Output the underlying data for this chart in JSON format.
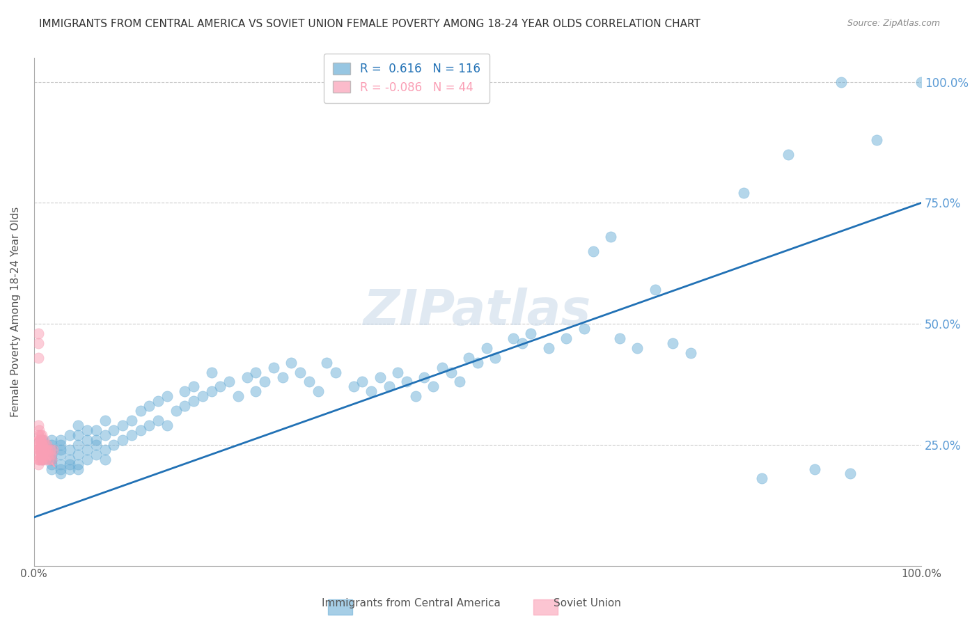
{
  "title": "IMMIGRANTS FROM CENTRAL AMERICA VS SOVIET UNION FEMALE POVERTY AMONG 18-24 YEAR OLDS CORRELATION CHART",
  "source": "Source: ZipAtlas.com",
  "xlabel": "",
  "ylabel": "Female Poverty Among 18-24 Year Olds",
  "watermark": "ZIPatlas",
  "blue_R": 0.616,
  "blue_N": 116,
  "pink_R": -0.086,
  "pink_N": 44,
  "blue_label": "Immigrants from Central America",
  "pink_label": "Soviet Union",
  "blue_color": "#6baed6",
  "pink_color": "#fa9fb5",
  "blue_line_color": "#2171b5",
  "pink_line_color": "#f768a1",
  "axis_label_color": "#5b9bd5",
  "ytick_color": "#5b9bd5",
  "xtick_color": "#595959",
  "grid_color": "#cccccc",
  "background_color": "#ffffff",
  "blue_scatter_x": [
    0.01,
    0.01,
    0.01,
    0.02,
    0.02,
    0.02,
    0.02,
    0.02,
    0.02,
    0.02,
    0.02,
    0.03,
    0.03,
    0.03,
    0.03,
    0.03,
    0.03,
    0.03,
    0.04,
    0.04,
    0.04,
    0.04,
    0.04,
    0.05,
    0.05,
    0.05,
    0.05,
    0.05,
    0.05,
    0.06,
    0.06,
    0.06,
    0.06,
    0.07,
    0.07,
    0.07,
    0.07,
    0.08,
    0.08,
    0.08,
    0.08,
    0.09,
    0.09,
    0.1,
    0.1,
    0.11,
    0.11,
    0.12,
    0.12,
    0.13,
    0.13,
    0.14,
    0.14,
    0.15,
    0.15,
    0.16,
    0.17,
    0.17,
    0.18,
    0.18,
    0.19,
    0.2,
    0.2,
    0.21,
    0.22,
    0.23,
    0.24,
    0.25,
    0.25,
    0.26,
    0.27,
    0.28,
    0.29,
    0.3,
    0.31,
    0.32,
    0.33,
    0.34,
    0.36,
    0.37,
    0.38,
    0.39,
    0.4,
    0.41,
    0.42,
    0.43,
    0.44,
    0.45,
    0.46,
    0.47,
    0.48,
    0.49,
    0.5,
    0.51,
    0.52,
    0.54,
    0.55,
    0.56,
    0.58,
    0.6,
    0.62,
    0.63,
    0.65,
    0.66,
    0.68,
    0.7,
    0.72,
    0.74,
    0.8,
    0.82,
    0.85,
    0.88,
    0.91,
    0.92,
    0.95,
    1.0
  ],
  "blue_scatter_y": [
    0.22,
    0.24,
    0.26,
    0.2,
    0.21,
    0.22,
    0.22,
    0.23,
    0.24,
    0.25,
    0.26,
    0.19,
    0.2,
    0.21,
    0.23,
    0.24,
    0.25,
    0.26,
    0.2,
    0.21,
    0.22,
    0.24,
    0.27,
    0.2,
    0.21,
    0.23,
    0.25,
    0.27,
    0.29,
    0.22,
    0.24,
    0.26,
    0.28,
    0.23,
    0.25,
    0.26,
    0.28,
    0.22,
    0.24,
    0.27,
    0.3,
    0.25,
    0.28,
    0.26,
    0.29,
    0.27,
    0.3,
    0.28,
    0.32,
    0.29,
    0.33,
    0.3,
    0.34,
    0.29,
    0.35,
    0.32,
    0.33,
    0.36,
    0.34,
    0.37,
    0.35,
    0.36,
    0.4,
    0.37,
    0.38,
    0.35,
    0.39,
    0.36,
    0.4,
    0.38,
    0.41,
    0.39,
    0.42,
    0.4,
    0.38,
    0.36,
    0.42,
    0.4,
    0.37,
    0.38,
    0.36,
    0.39,
    0.37,
    0.4,
    0.38,
    0.35,
    0.39,
    0.37,
    0.41,
    0.4,
    0.38,
    0.43,
    0.42,
    0.45,
    0.43,
    0.47,
    0.46,
    0.48,
    0.45,
    0.47,
    0.49,
    0.65,
    0.68,
    0.47,
    0.45,
    0.57,
    0.46,
    0.44,
    0.77,
    0.18,
    0.85,
    0.2,
    1.0,
    0.19,
    0.88,
    1.0
  ],
  "pink_scatter_x": [
    0.005,
    0.005,
    0.005,
    0.005,
    0.005,
    0.005,
    0.005,
    0.005,
    0.005,
    0.006,
    0.006,
    0.006,
    0.006,
    0.006,
    0.006,
    0.007,
    0.007,
    0.007,
    0.007,
    0.008,
    0.008,
    0.008,
    0.008,
    0.009,
    0.009,
    0.009,
    0.009,
    0.01,
    0.01,
    0.01,
    0.011,
    0.011,
    0.012,
    0.012,
    0.013,
    0.013,
    0.014,
    0.015,
    0.016,
    0.017,
    0.018,
    0.019,
    0.02,
    0.021
  ],
  "pink_scatter_y": [
    0.24,
    0.22,
    0.25,
    0.21,
    0.46,
    0.48,
    0.43,
    0.27,
    0.29,
    0.24,
    0.22,
    0.26,
    0.28,
    0.25,
    0.23,
    0.24,
    0.26,
    0.22,
    0.27,
    0.25,
    0.23,
    0.24,
    0.26,
    0.22,
    0.25,
    0.27,
    0.24,
    0.23,
    0.25,
    0.22,
    0.24,
    0.26,
    0.23,
    0.25,
    0.24,
    0.22,
    0.25,
    0.24,
    0.23,
    0.22,
    0.24,
    0.23,
    0.22,
    0.24
  ],
  "blue_line_x": [
    0.0,
    1.0
  ],
  "blue_line_y": [
    0.1,
    0.75
  ],
  "pink_line_x": [
    0.0,
    0.025
  ],
  "pink_line_y": [
    0.265,
    0.2
  ],
  "xlim": [
    0.0,
    1.0
  ],
  "ylim": [
    0.0,
    1.05
  ],
  "yticks": [
    0.0,
    0.25,
    0.5,
    0.75,
    1.0
  ],
  "ytick_labels": [
    "",
    "25.0%",
    "50.0%",
    "75.0%",
    "100.0%"
  ],
  "xticks": [
    0.0,
    1.0
  ],
  "xtick_labels": [
    "0.0%",
    "100.0%"
  ],
  "title_fontsize": 11,
  "source_fontsize": 9,
  "legend_fontsize": 11
}
